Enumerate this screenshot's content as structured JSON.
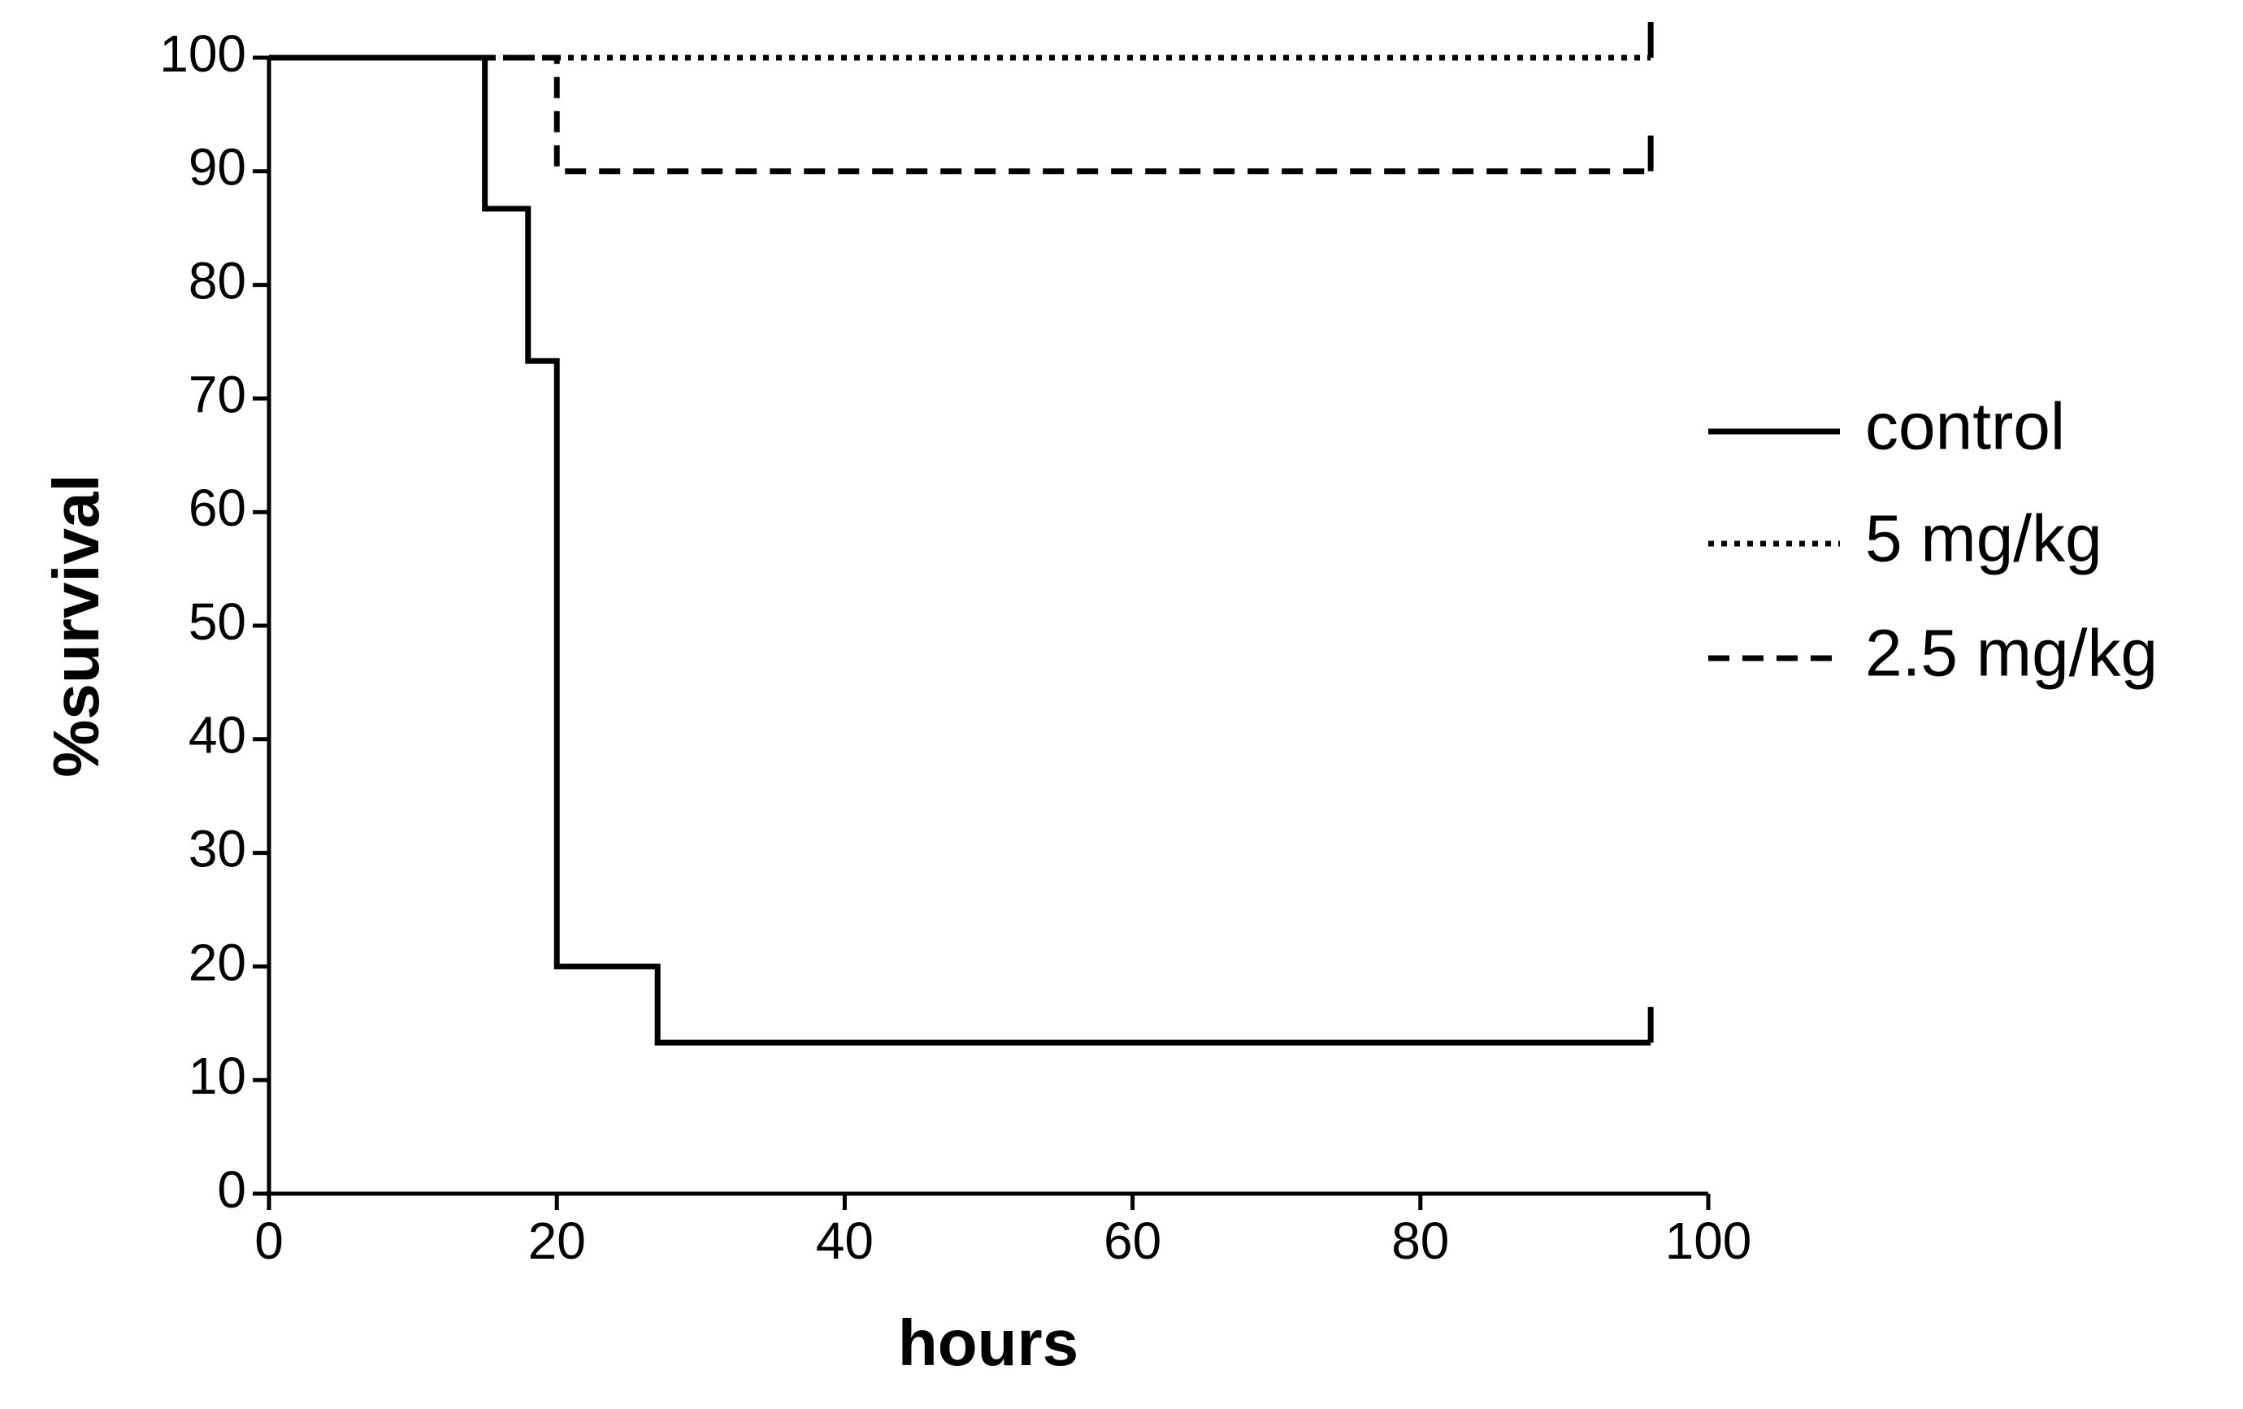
{
  "chart_data": {
    "type": "line",
    "step": true,
    "x_label": "hours",
    "y_label": "%survival",
    "xlim": [
      0,
      100
    ],
    "xticks": [
      0,
      20,
      40,
      60,
      80,
      100
    ],
    "ylim": [
      0,
      100
    ],
    "yticks": [
      0,
      10,
      20,
      30,
      40,
      50,
      60,
      70,
      80,
      90,
      100
    ],
    "legend": "right",
    "series": [
      {
        "name": "control",
        "color": "#000000",
        "dash": "solid",
        "x": [
          0,
          15,
          15,
          18,
          18,
          20,
          20,
          27,
          27,
          96
        ],
        "values": [
          100,
          100,
          86.7,
          86.7,
          73.3,
          73.3,
          20,
          20,
          13.3,
          13.3
        ]
      },
      {
        "name": "5 mg/kg",
        "color": "#000000",
        "dash": "dotted",
        "x": [
          0,
          96
        ],
        "values": [
          100,
          100
        ]
      },
      {
        "name": "2.5 mg/kg",
        "color": "#000000",
        "dash": "dashed",
        "x": [
          0,
          20,
          20,
          96
        ],
        "values": [
          100,
          100,
          90,
          90
        ]
      }
    ]
  }
}
